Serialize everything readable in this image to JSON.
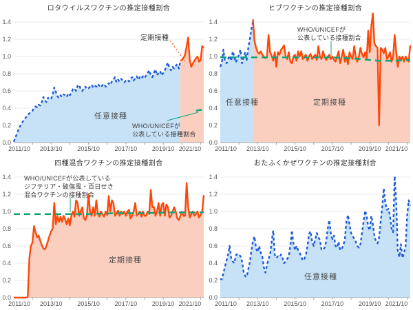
{
  "colors": {
    "blue": "#1e5bd6",
    "blue_fill": "#c7e2f7",
    "orange": "#fd4708",
    "orange_fill": "#fbcfc0",
    "green": "#0ca678",
    "grid": "#ebebeb",
    "axis": "#a8a8a8",
    "tick_text": "#555555"
  },
  "chart_data": [
    {
      "type": "area",
      "title": "ロタウイルスワクチンの推定接種割合",
      "x_ticks": [
        "2011/10",
        "2013/10",
        "2015/10",
        "2017/10",
        "2019/10",
        "2021/10"
      ],
      "x_tick_index": [
        0,
        24,
        48,
        72,
        96,
        120
      ],
      "ylim": [
        0,
        1.4
      ],
      "y_ticks": [
        0,
        0.2,
        0.4,
        0.6,
        0.8,
        1.0,
        1.2,
        1.4
      ],
      "grid": true,
      "labels": {
        "voluntary": "任意接種"
      },
      "annotations": {
        "routine": "定期接種",
        "who1": "WHO/UNICEFが",
        "who2": "公表している接種割合"
      },
      "series": [
        {
          "name": "任意接種",
          "style": "dashed",
          "color": "blue",
          "fill": "blue_fill",
          "start_index": 0,
          "values": [
            0.01,
            0.06,
            0.1,
            0.15,
            0.19,
            0.22,
            0.25,
            0.27,
            0.3,
            0.32,
            0.34,
            0.35,
            0.37,
            0.4,
            0.42,
            0.41,
            0.44,
            0.43,
            0.47,
            0.53,
            0.49,
            0.47,
            0.52,
            0.5,
            0.51,
            0.56,
            0.64,
            0.59,
            0.54,
            0.52,
            0.55,
            0.53,
            0.56,
            0.55,
            0.53,
            0.57,
            0.55,
            0.58,
            0.62,
            0.63,
            0.6,
            0.66,
            0.67,
            0.62,
            0.6,
            0.63,
            0.65,
            0.62,
            0.63,
            0.65,
            0.67,
            0.64,
            0.66,
            0.65,
            0.68,
            0.66,
            0.64,
            0.67,
            0.68,
            0.65,
            0.66,
            0.69,
            0.67,
            0.71,
            0.73,
            0.76,
            0.7,
            0.73,
            0.71,
            0.74,
            0.72,
            0.7,
            0.72,
            0.73,
            0.71,
            0.74,
            0.76,
            0.72,
            0.75,
            0.77,
            0.73,
            0.76,
            0.74,
            0.77,
            0.75,
            0.78,
            0.81,
            0.84,
            0.78,
            0.76,
            0.81,
            0.85,
            0.78,
            0.81,
            0.83,
            0.78,
            0.81,
            0.84,
            0.89,
            0.93,
            0.86,
            0.84,
            0.88,
            0.86,
            0.89,
            0.91,
            0.86,
            0.95
          ]
        },
        {
          "name": "定期接種",
          "style": "solid",
          "color": "orange",
          "fill": "orange_fill",
          "start_index": 107,
          "values": [
            0.95,
            0.96,
            0.98,
            1.02,
            1.12,
            1.22,
            0.96,
            0.88,
            0.92,
            0.95,
            0.98,
            1.0,
            0.94,
            0.96,
            1.12,
            1.1
          ]
        },
        {
          "name": "WHO/UNICEFが公表している接種割合",
          "style": "who",
          "color": "green",
          "points": [
            [
              117,
              0.37
            ],
            [
              122,
              0.385
            ]
          ]
        }
      ]
    },
    {
      "type": "area",
      "title": "ヒブワクチンの推定接種割合",
      "x_ticks": [
        "2011/10",
        "2013/10",
        "2015/10",
        "2017/10",
        "2019/10",
        "2021/10"
      ],
      "x_tick_index": [
        0,
        24,
        48,
        72,
        96,
        120
      ],
      "ylim": [
        0,
        1.4
      ],
      "y_ticks": [
        0,
        0.2,
        0.4,
        0.6,
        0.8,
        1.0,
        1.2,
        1.4
      ],
      "grid": true,
      "labels": {
        "voluntary": "任意接種",
        "routine": "定期接種"
      },
      "annotations": {
        "who1": "WHO/UNICEFが",
        "who2": "公表している接種割合"
      },
      "series": [
        {
          "name": "任意接種",
          "style": "dashed",
          "color": "blue",
          "fill": "blue_fill",
          "start_index": 0,
          "values": [
            0.88,
            0.93,
            1.08,
            0.95,
            0.92,
            0.97,
            1.01,
            0.95,
            1.06,
            1.0,
            0.93,
            0.98,
            1.02,
            1.08,
            0.92,
            1.0,
            1.05,
            0.96,
            1.1,
            1.2,
            1.32,
            1.4
          ]
        },
        {
          "name": "定期接種",
          "style": "solid",
          "color": "orange",
          "fill": "orange_fill",
          "start_index": 21,
          "values": [
            1.43,
            1.18,
            1.1,
            1.05,
            1.03,
            1.06,
            1.02,
            1.0,
            0.98,
            1.0,
            1.25,
            1.05,
            1.01,
            0.95,
            1.05,
            0.88,
            1.05,
            1.02,
            1.08,
            1.1,
            1.13,
            1.0,
            0.97,
            1.05,
            0.94,
            0.92,
            1.0,
            1.02,
            0.95,
            1.06,
            1.0,
            1.06,
            0.97,
            1.0,
            1.02,
            0.95,
            1.0,
            1.03,
            0.97,
            1.0,
            1.02,
            0.96,
            1.12,
            1.0,
            0.97,
            1.06,
            1.0,
            0.96,
            1.0,
            1.02,
            0.97,
            1.0,
            0.96,
            0.94,
            1.0,
            1.06,
            0.92,
            1.0,
            1.08,
            0.94,
            1.0,
            0.91,
            1.05,
            1.0,
            0.97,
            1.12,
            1.0,
            0.94,
            1.0,
            1.1,
            1.03,
            0.99,
            1.05,
            0.97,
            1.3,
            1.05,
            1.35,
            1.5,
            1.15,
            1.12,
            1.1,
            0.2,
            1.1,
            1.08,
            1.04,
            1.1,
            0.97,
            1.0,
            1.05,
            0.94,
            1.0,
            1.25,
            1.05,
            0.88,
            1.0,
            0.96,
            1.0,
            0.94,
            1.0,
            0.97,
            0.94,
            1.13
          ]
        },
        {
          "name": "WHO/UNICEFが公表している接種割合",
          "style": "who",
          "color": "green",
          "points": [
            [
              0,
              0.99
            ],
            [
              24,
              0.99
            ],
            [
              48,
              0.99
            ],
            [
              72,
              0.99
            ],
            [
              90,
              0.97
            ],
            [
              102,
              0.95
            ],
            [
              112,
              0.95
            ],
            [
              122,
              0.96
            ]
          ]
        }
      ]
    },
    {
      "type": "area",
      "title": "四種混合ワクチンの推定接種割合",
      "x_ticks": [
        "2011/10",
        "2013/10",
        "2015/10",
        "2017/10",
        "2019/10",
        "2021/10"
      ],
      "x_tick_index": [
        0,
        24,
        48,
        72,
        96,
        120
      ],
      "ylim": [
        0,
        1.4
      ],
      "y_ticks": [
        0,
        0.2,
        0.4,
        0.6,
        0.8,
        1.0,
        1.2,
        1.4
      ],
      "grid": true,
      "labels": {
        "routine": "定期接種"
      },
      "annotations": {
        "who1": "WHO/UNICEFが公表している",
        "who2": "ジフテリア・破傷風・百日せき",
        "who3": "混合ワクチンの接種割合"
      },
      "series": [
        {
          "name": "定期接種",
          "style": "solid",
          "color": "orange",
          "fill": "orange_fill",
          "start_index": 0,
          "values": [
            0.0,
            0.0,
            0.0,
            0.0,
            0.0,
            0.0,
            0.0,
            0.0,
            0.0,
            0.01,
            0.45,
            0.6,
            0.64,
            0.83,
            0.76,
            0.7,
            0.72,
            0.66,
            0.61,
            0.57,
            0.56,
            0.6,
            0.66,
            0.72,
            0.77,
            0.8,
            1.1,
            0.85,
            0.95,
            0.88,
            0.94,
            0.88,
            0.95,
            0.91,
            0.85,
            0.92,
            0.84,
            0.95,
            1.0,
            0.94,
            1.13,
            1.1,
            0.95,
            1.0,
            1.05,
            0.92,
            0.9,
            0.96,
            1.2,
            1.0,
            0.95,
            1.05,
            0.95,
            1.13,
            0.98,
            0.94,
            1.0,
            0.97,
            0.94,
            1.0,
            0.96,
            1.18,
            1.0,
            1.13,
            1.1,
            0.95,
            0.98,
            1.01,
            0.95,
            1.0,
            0.97,
            1.0,
            0.95,
            1.0,
            1.02,
            0.92,
            0.95,
            1.0,
            1.1,
            0.95,
            0.97,
            1.0,
            0.94,
            1.0,
            0.95,
            0.95,
            1.0,
            0.97,
            1.25,
            1.05,
            1.05,
            0.95,
            1.0,
            1.1,
            0.95,
            1.08,
            1.1,
            0.95,
            1.08,
            1.05,
            0.93,
            0.95,
            1.0,
            1.05,
            1.0,
            0.92,
            0.9,
            0.95,
            1.0,
            0.95,
            0.95,
            1.33,
            1.05,
            0.93,
            0.97,
            1.0,
            0.95,
            0.97,
            1.0,
            0.93,
            0.96,
            1.0,
            1.19
          ]
        },
        {
          "name": "WHO/UNICEFが公表している接種割合",
          "style": "who",
          "color": "green",
          "points": [
            [
              0,
              0.97
            ],
            [
              24,
              0.97
            ],
            [
              48,
              0.97
            ],
            [
              66,
              0.98
            ],
            [
              84,
              0.98
            ],
            [
              100,
              0.99
            ],
            [
              122,
              0.99
            ]
          ]
        }
      ]
    },
    {
      "type": "area",
      "title": "おたふくかぜワクチンの推定接種割合",
      "x_ticks": [
        "2011/10",
        "2013/10",
        "2015/10",
        "2017/10",
        "2019/10",
        "2021/10"
      ],
      "x_tick_index": [
        0,
        24,
        48,
        72,
        96,
        120
      ],
      "ylim": [
        0,
        1.4
      ],
      "y_ticks": [
        0,
        0.2,
        0.4,
        0.6,
        0.8,
        1.0,
        1.2,
        1.4
      ],
      "grid": true,
      "labels": {
        "voluntary": "任意接種"
      },
      "annotations": {},
      "series": [
        {
          "name": "任意接種",
          "style": "dashed",
          "color": "blue",
          "fill": "blue_fill",
          "start_index": 0,
          "values": [
            0.22,
            0.21,
            0.28,
            0.36,
            0.43,
            0.5,
            0.6,
            0.46,
            0.42,
            0.4,
            0.49,
            0.51,
            0.5,
            0.48,
            0.42,
            0.3,
            0.25,
            0.24,
            0.33,
            0.41,
            0.55,
            0.66,
            0.71,
            0.57,
            0.53,
            0.6,
            0.52,
            0.48,
            0.35,
            0.29,
            0.38,
            0.45,
            0.5,
            0.65,
            0.78,
            0.5,
            0.46,
            0.48,
            0.47,
            0.5,
            0.46,
            0.4,
            0.42,
            0.45,
            0.48,
            0.6,
            0.78,
            0.63,
            0.55,
            0.6,
            0.55,
            0.52,
            0.48,
            0.43,
            0.45,
            0.5,
            0.6,
            0.74,
            0.77,
            0.65,
            0.6,
            0.68,
            0.75,
            0.7,
            0.67,
            0.56,
            0.55,
            0.58,
            0.65,
            0.8,
            0.9,
            0.75,
            0.68,
            0.72,
            0.6,
            0.58,
            0.65,
            0.55,
            0.57,
            0.6,
            0.68,
            0.88,
            0.96,
            0.85,
            0.75,
            0.72,
            0.68,
            0.65,
            0.6,
            0.58,
            0.62,
            0.75,
            0.88,
            1.01,
            0.95,
            0.82,
            0.78,
            0.95,
            0.85,
            0.72,
            0.65,
            0.63,
            0.7,
            0.88,
            1.05,
            1.27,
            1.1,
            1.02,
            1.03,
            0.95,
            0.8,
            0.76,
            1.41,
            1.1,
            0.55,
            0.47,
            0.62,
            0.46,
            0.52,
            0.6,
            0.95,
            1.13,
            1.07
          ]
        }
      ]
    }
  ]
}
